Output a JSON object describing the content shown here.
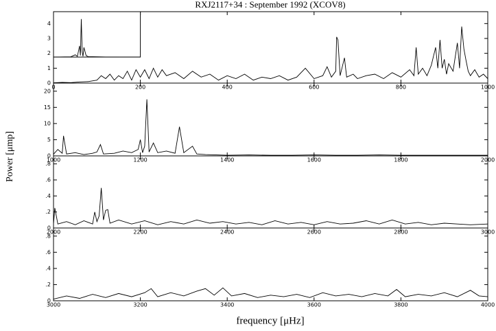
{
  "chart_data": [
    {
      "type": "line",
      "title": "RXJ2117+34 :   September 1992 (XCOV8)",
      "ylabel": "Power [μmp]",
      "xlim": [
        0,
        1000
      ],
      "ylim": [
        0,
        4.8
      ],
      "xticks": [
        0,
        200,
        400,
        600,
        800,
        1000
      ],
      "yticks": [
        0,
        1,
        2,
        3,
        4
      ],
      "series": [
        {
          "color": "#000000",
          "x": [
            0,
            20,
            40,
            60,
            80,
            100,
            110,
            120,
            130,
            140,
            150,
            160,
            170,
            180,
            190,
            200,
            210,
            220,
            230,
            240,
            250,
            260,
            280,
            300,
            320,
            340,
            360,
            380,
            400,
            420,
            440,
            460,
            480,
            500,
            520,
            540,
            560,
            580,
            600,
            620,
            630,
            640,
            650,
            652,
            655,
            660,
            670,
            675,
            690,
            700,
            720,
            740,
            760,
            780,
            800,
            820,
            830,
            835,
            840,
            850,
            860,
            870,
            880,
            885,
            890,
            895,
            900,
            905,
            910,
            920,
            930,
            935,
            940,
            945,
            950,
            955,
            960,
            970,
            980,
            990,
            1000
          ],
          "values": [
            0.02,
            0.05,
            0.03,
            0.08,
            0.1,
            0.2,
            0.5,
            0.3,
            0.6,
            0.2,
            0.5,
            0.3,
            0.8,
            0.2,
            0.9,
            0.4,
            0.9,
            0.3,
            1.0,
            0.4,
            0.9,
            0.5,
            0.7,
            0.3,
            0.8,
            0.4,
            0.6,
            0.2,
            0.5,
            0.3,
            0.6,
            0.2,
            0.4,
            0.3,
            0.5,
            0.2,
            0.4,
            1.0,
            0.3,
            0.5,
            1.1,
            0.4,
            0.8,
            3.1,
            2.9,
            0.5,
            1.7,
            0.4,
            0.6,
            0.3,
            0.5,
            0.6,
            0.3,
            0.7,
            0.4,
            0.9,
            0.5,
            2.4,
            0.6,
            1.0,
            0.5,
            1.2,
            2.4,
            1.0,
            2.9,
            1.0,
            1.6,
            0.6,
            1.3,
            0.8,
            2.7,
            1.0,
            3.8,
            2.3,
            1.5,
            0.8,
            0.5,
            0.9,
            0.4,
            0.6,
            0.3
          ]
        }
      ],
      "inset": {
        "x": [
          0,
          40,
          50,
          55,
          60,
          62,
          64,
          66,
          68,
          70,
          75,
          80,
          120,
          160,
          200
        ],
        "values": [
          1.75,
          1.77,
          1.9,
          1.8,
          2.5,
          1.85,
          4.3,
          2.1,
          1.8,
          2.4,
          1.85,
          1.78,
          1.76,
          1.75,
          1.75
        ]
      }
    },
    {
      "type": "line",
      "xlim": [
        1000,
        2000
      ],
      "ylim": [
        0,
        22.5
      ],
      "xticks": [
        1000,
        1200,
        1400,
        1600,
        1800,
        2000
      ],
      "yticks": [
        0,
        5,
        10,
        15,
        20
      ],
      "series": [
        {
          "color": "#000000",
          "x": [
            1000,
            1010,
            1020,
            1023,
            1030,
            1050,
            1070,
            1090,
            1100,
            1108,
            1115,
            1140,
            1160,
            1180,
            1195,
            1200,
            1205,
            1210,
            1215,
            1220,
            1230,
            1240,
            1260,
            1280,
            1290,
            1300,
            1320,
            1330,
            1350,
            1400,
            1450,
            1500,
            1550,
            1600,
            1650,
            1700,
            1750,
            1800,
            1850,
            1900,
            1950,
            2000
          ],
          "values": [
            0.5,
            2.0,
            0.8,
            6.2,
            0.6,
            1.0,
            0.4,
            0.8,
            1.2,
            3.5,
            0.6,
            0.8,
            1.5,
            1.0,
            2.0,
            5.0,
            1.0,
            3.0,
            17.5,
            1.2,
            4.0,
            1.0,
            1.5,
            0.8,
            9.0,
            1.0,
            3.0,
            0.6,
            0.4,
            0.2,
            0.3,
            0.2,
            0.2,
            0.3,
            0.2,
            0.2,
            0.3,
            0.2,
            0.2,
            0.2,
            0.2,
            0.2
          ]
        }
      ]
    },
    {
      "type": "line",
      "xlim": [
        2000,
        3000
      ],
      "ylim": [
        0,
        0.9
      ],
      "xticks": [
        2000,
        2200,
        2400,
        2600,
        2800,
        3000
      ],
      "yticks": [
        0,
        {
          "value": 0.2,
          "label": ".2"
        },
        {
          "value": 0.4,
          "label": ".4"
        },
        {
          "value": 0.6,
          "label": ".6"
        },
        {
          "value": 0.8,
          "label": ".8"
        }
      ],
      "series": [
        {
          "color": "#000000",
          "x": [
            2000,
            2003,
            2010,
            2030,
            2050,
            2070,
            2090,
            2095,
            2100,
            2105,
            2110,
            2115,
            2120,
            2125,
            2130,
            2150,
            2180,
            2210,
            2240,
            2270,
            2300,
            2330,
            2360,
            2390,
            2420,
            2450,
            2480,
            2510,
            2540,
            2570,
            2600,
            2630,
            2660,
            2690,
            2720,
            2750,
            2780,
            2810,
            2840,
            2870,
            2900,
            2930,
            2960,
            3000
          ],
          "values": [
            0.05,
            0.25,
            0.05,
            0.08,
            0.04,
            0.09,
            0.05,
            0.2,
            0.08,
            0.15,
            0.5,
            0.1,
            0.22,
            0.23,
            0.06,
            0.1,
            0.05,
            0.09,
            0.04,
            0.08,
            0.05,
            0.1,
            0.06,
            0.08,
            0.05,
            0.07,
            0.04,
            0.09,
            0.05,
            0.07,
            0.04,
            0.08,
            0.05,
            0.06,
            0.09,
            0.05,
            0.1,
            0.05,
            0.07,
            0.04,
            0.06,
            0.05,
            0.04,
            0.05
          ]
        }
      ]
    },
    {
      "type": "line",
      "xlabel": "frequency [μHz]",
      "xlim": [
        3000,
        4000
      ],
      "ylim": [
        0,
        0.9
      ],
      "xticks": [
        3000,
        3200,
        3400,
        3600,
        3800,
        4000
      ],
      "yticks": [
        0,
        {
          "value": 0.2,
          "label": ".2"
        },
        {
          "value": 0.4,
          "label": ".4"
        },
        {
          "value": 0.6,
          "label": ".6"
        },
        {
          "value": 0.8,
          "label": ".8"
        }
      ],
      "series": [
        {
          "color": "#000000",
          "x": [
            3000,
            3030,
            3060,
            3090,
            3120,
            3150,
            3180,
            3210,
            3225,
            3240,
            3270,
            3300,
            3330,
            3350,
            3370,
            3390,
            3410,
            3440,
            3470,
            3500,
            3530,
            3560,
            3590,
            3620,
            3650,
            3680,
            3710,
            3740,
            3770,
            3790,
            3810,
            3840,
            3870,
            3900,
            3930,
            3960,
            3980,
            4000
          ],
          "values": [
            0.02,
            0.06,
            0.03,
            0.08,
            0.04,
            0.09,
            0.05,
            0.1,
            0.15,
            0.05,
            0.1,
            0.06,
            0.12,
            0.15,
            0.07,
            0.16,
            0.06,
            0.09,
            0.04,
            0.07,
            0.05,
            0.08,
            0.04,
            0.1,
            0.06,
            0.08,
            0.05,
            0.09,
            0.06,
            0.14,
            0.05,
            0.08,
            0.06,
            0.1,
            0.05,
            0.13,
            0.06,
            0.05
          ]
        }
      ]
    }
  ]
}
